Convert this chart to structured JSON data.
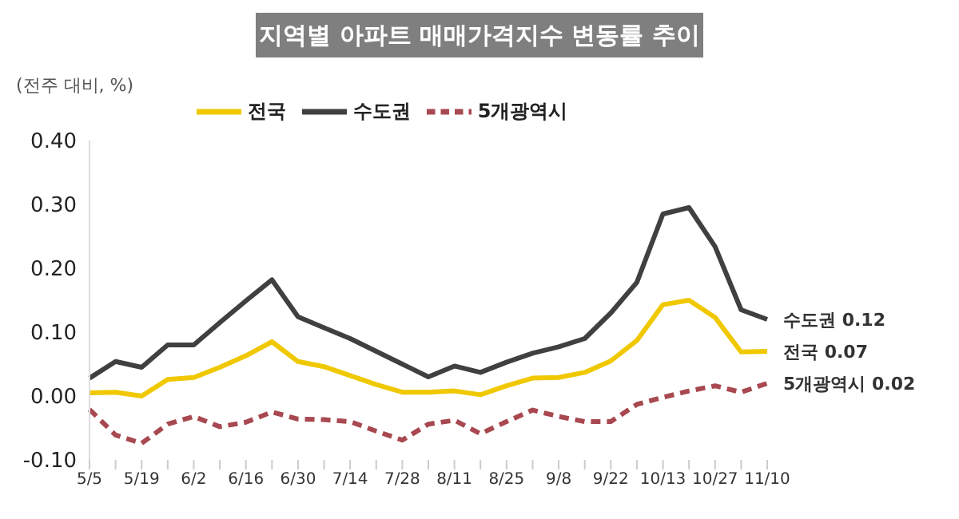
{
  "chart_data": {
    "type": "line",
    "title": "지역별 아파트 매매가격지수 변동률 추이",
    "ylabel": "(전주 대비, %)",
    "categories": [
      "5/5",
      null,
      "5/19",
      null,
      "6/2",
      null,
      "6/16",
      null,
      "6/30",
      null,
      "7/14",
      null,
      "7/28",
      null,
      "8/11",
      null,
      "8/25",
      null,
      "9/8",
      null,
      "9/22",
      null,
      "10/13",
      null,
      "10/27",
      null,
      "11/10"
    ],
    "series": [
      {
        "name": "전국",
        "color": "#f0c800",
        "line_style": "solid",
        "values": [
          0.005,
          0.006,
          0,
          0.026,
          0.029,
          0.045,
          0.063,
          0.085,
          0.054,
          0.046,
          0.032,
          0.018,
          0.006,
          0.006,
          0.008,
          0.002,
          0.016,
          0.028,
          0.029,
          0.037,
          0.055,
          0.087,
          0.143,
          0.15,
          0.123,
          0.069,
          0.07
        ]
      },
      {
        "name": "수도권",
        "color": "#404040",
        "line_style": "solid",
        "values": [
          0.028,
          0.054,
          0.045,
          0.08,
          0.08,
          0.115,
          0.149,
          0.182,
          0.124,
          0.107,
          0.09,
          0.07,
          0.05,
          0.03,
          0.047,
          0.037,
          0.053,
          0.067,
          0.077,
          0.09,
          0.13,
          0.178,
          0.285,
          0.295,
          0.234,
          0.135,
          0.12
        ]
      },
      {
        "name": "5개광역시",
        "color": "#a84850",
        "line_style": "dashed",
        "values": [
          -0.021,
          -0.061,
          -0.074,
          -0.044,
          -0.032,
          -0.048,
          -0.041,
          -0.025,
          -0.036,
          -0.037,
          -0.04,
          -0.055,
          -0.069,
          -0.044,
          -0.038,
          -0.059,
          -0.04,
          -0.022,
          -0.032,
          -0.04,
          -0.04,
          -0.013,
          -0.002,
          0.008,
          0.016,
          0.006,
          0.02
        ]
      }
    ],
    "ylim": [
      -0.1,
      0.4
    ],
    "yticks": [
      {
        "value": -0.1,
        "label": "-0.10"
      },
      {
        "value": 0,
        "label": "0.00"
      },
      {
        "value": 0.1,
        "label": "0.10"
      },
      {
        "value": 0.2,
        "label": "0.20"
      },
      {
        "value": 0.3,
        "label": "0.30"
      },
      {
        "value": 0.4,
        "label": "0.40"
      }
    ],
    "annotations": [
      {
        "text": "수도권 0.12",
        "x": "11/10",
        "y": 0.12
      },
      {
        "text": "전국 0.07",
        "x": "11/10",
        "y": 0.07
      },
      {
        "text": "5개광역시 0.02",
        "x": "11/10",
        "y": 0.02
      }
    ],
    "legend": "top",
    "grid": false,
    "marker": "none"
  }
}
